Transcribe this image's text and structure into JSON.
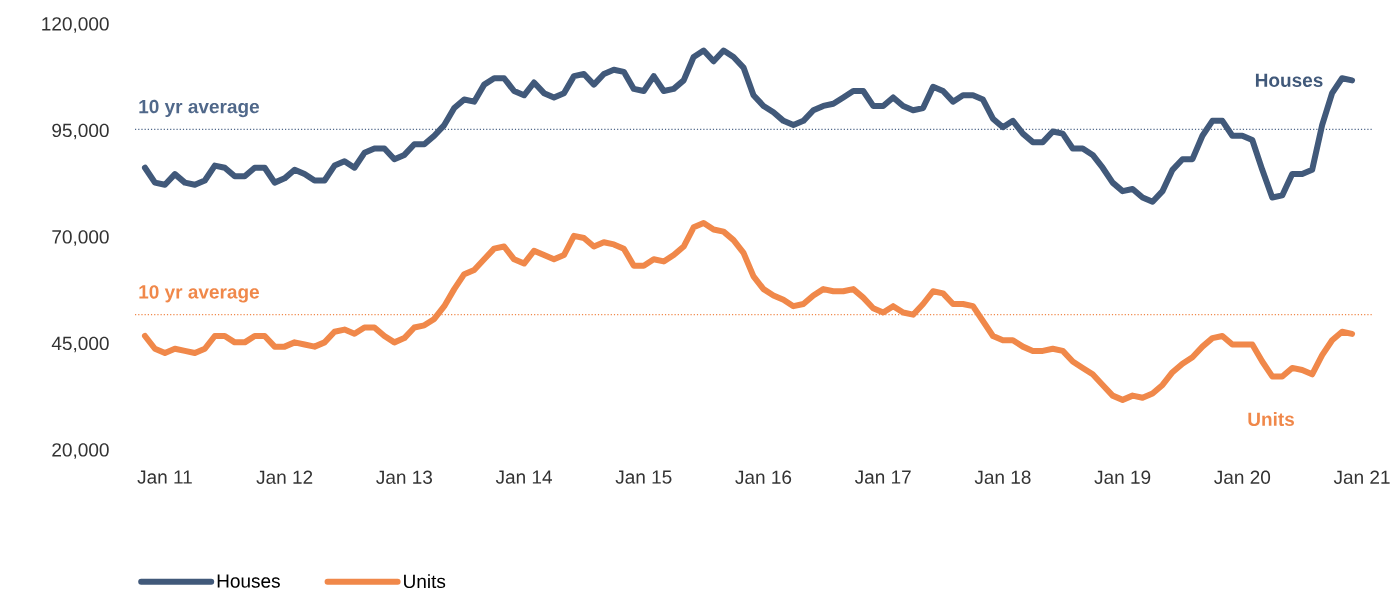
{
  "chart_data": {
    "type": "line",
    "x": [
      "2010-11",
      "2010-12",
      "2011-01",
      "2011-02",
      "2011-03",
      "2011-04",
      "2011-05",
      "2011-06",
      "2011-07",
      "2011-08",
      "2011-09",
      "2011-10",
      "2011-11",
      "2011-12",
      "2012-01",
      "2012-02",
      "2012-03",
      "2012-04",
      "2012-05",
      "2012-06",
      "2012-07",
      "2012-08",
      "2012-09",
      "2012-10",
      "2012-11",
      "2012-12",
      "2013-01",
      "2013-02",
      "2013-03",
      "2013-04",
      "2013-05",
      "2013-06",
      "2013-07",
      "2013-08",
      "2013-09",
      "2013-10",
      "2013-11",
      "2013-12",
      "2014-01",
      "2014-02",
      "2014-03",
      "2014-04",
      "2014-05",
      "2014-06",
      "2014-07",
      "2014-08",
      "2014-09",
      "2014-10",
      "2014-11",
      "2014-12",
      "2015-01",
      "2015-02",
      "2015-03",
      "2015-04",
      "2015-05",
      "2015-06",
      "2015-07",
      "2015-08",
      "2015-09",
      "2015-10",
      "2015-11",
      "2015-12",
      "2016-01",
      "2016-02",
      "2016-03",
      "2016-04",
      "2016-05",
      "2016-06",
      "2016-07",
      "2016-08",
      "2016-09",
      "2016-10",
      "2016-11",
      "2016-12",
      "2017-01",
      "2017-02",
      "2017-03",
      "2017-04",
      "2017-05",
      "2017-06",
      "2017-07",
      "2017-08",
      "2017-09",
      "2017-10",
      "2017-11",
      "2017-12",
      "2018-01",
      "2018-02",
      "2018-03",
      "2018-04",
      "2018-05",
      "2018-06",
      "2018-07",
      "2018-08",
      "2018-09",
      "2018-10",
      "2018-11",
      "2018-12",
      "2019-01",
      "2019-02",
      "2019-03",
      "2019-04",
      "2019-05",
      "2019-06",
      "2019-07",
      "2019-08",
      "2019-09",
      "2019-10",
      "2019-11",
      "2019-12",
      "2020-01",
      "2020-02",
      "2020-03",
      "2020-04",
      "2020-05",
      "2020-06",
      "2020-07",
      "2020-08",
      "2020-09",
      "2020-10",
      "2020-11",
      "2020-12"
    ],
    "series": [
      {
        "name": "Houses",
        "color": "#41597a",
        "values": [
          86500,
          83000,
          82500,
          85000,
          83000,
          82500,
          83500,
          87000,
          86500,
          84500,
          84500,
          86500,
          86500,
          83000,
          84000,
          86000,
          85000,
          83500,
          83500,
          87000,
          88000,
          86500,
          90000,
          91000,
          91000,
          88500,
          89500,
          92000,
          92000,
          94000,
          96500,
          100500,
          102500,
          102000,
          106000,
          107500,
          107500,
          104500,
          103500,
          106500,
          104000,
          103000,
          104000,
          108000,
          108500,
          106000,
          108500,
          109500,
          109000,
          105000,
          104500,
          108000,
          104500,
          105000,
          107000,
          112500,
          114000,
          111500,
          114000,
          112500,
          110000,
          103500,
          101000,
          99500,
          97500,
          96500,
          97500,
          100000,
          101000,
          101500,
          103000,
          104500,
          104500,
          101000,
          101000,
          103000,
          101000,
          100000,
          100500,
          105500,
          104500,
          102000,
          103500,
          103500,
          102500,
          98000,
          96000,
          97500,
          94500,
          92500,
          92500,
          95000,
          94500,
          91000,
          91000,
          89500,
          86500,
          83000,
          81000,
          81500,
          79500,
          78500,
          81000,
          86000,
          88500,
          88500,
          94000,
          97500,
          97500,
          94000,
          94000,
          93000,
          86000,
          79500,
          80000,
          85000,
          85000,
          86000,
          96500,
          104000,
          107500,
          107000
        ]
      },
      {
        "name": "Units",
        "color": "#f0884a",
        "values": [
          47000,
          44000,
          43000,
          44000,
          43500,
          43000,
          44000,
          47000,
          47000,
          45500,
          45500,
          47000,
          47000,
          44500,
          44500,
          45500,
          45000,
          44500,
          45500,
          48000,
          48500,
          47500,
          49000,
          49000,
          47000,
          45500,
          46500,
          49000,
          49500,
          51000,
          54000,
          58000,
          61500,
          62500,
          65000,
          67500,
          68000,
          65000,
          64000,
          67000,
          66000,
          65000,
          66000,
          70500,
          70000,
          68000,
          69000,
          68500,
          67500,
          63500,
          63500,
          65000,
          64500,
          66000,
          68000,
          72500,
          73500,
          72000,
          71500,
          69500,
          66500,
          61000,
          58000,
          56500,
          55500,
          54000,
          54500,
          56500,
          58000,
          57500,
          57500,
          58000,
          56000,
          53500,
          52500,
          54000,
          52500,
          52000,
          54500,
          57500,
          57000,
          54500,
          54500,
          54000,
          50500,
          47000,
          46000,
          46000,
          44500,
          43500,
          43500,
          44000,
          43500,
          41000,
          39500,
          38000,
          35500,
          33000,
          32000,
          33000,
          32500,
          33500,
          35500,
          38500,
          40500,
          42000,
          44500,
          46500,
          47000,
          45000,
          45000,
          45000,
          41000,
          37500,
          37500,
          39500,
          39000,
          38000,
          42500,
          46000,
          48000,
          47500
        ]
      }
    ],
    "xlim": [
      "2010-10",
      "2021-02"
    ],
    "xticks": [
      {
        "value": "2011-01",
        "label": "Jan 11"
      },
      {
        "value": "2012-01",
        "label": "Jan 12"
      },
      {
        "value": "2013-01",
        "label": "Jan 13"
      },
      {
        "value": "2014-01",
        "label": "Jan 14"
      },
      {
        "value": "2015-01",
        "label": "Jan 15"
      },
      {
        "value": "2016-01",
        "label": "Jan 16"
      },
      {
        "value": "2017-01",
        "label": "Jan 17"
      },
      {
        "value": "2018-01",
        "label": "Jan 18"
      },
      {
        "value": "2019-01",
        "label": "Jan 19"
      },
      {
        "value": "2020-01",
        "label": "Jan 20"
      },
      {
        "value": "2021-01",
        "label": "Jan 21"
      }
    ],
    "ylim": [
      20000,
      120000
    ],
    "yticks": [
      {
        "value": 20000,
        "label": "20,000"
      },
      {
        "value": 45000,
        "label": "45,000"
      },
      {
        "value": 70000,
        "label": "70,000"
      },
      {
        "value": 95000,
        "label": "95,000"
      },
      {
        "value": 120000,
        "label": "120,000"
      }
    ],
    "ref_lines": [
      {
        "axis": "y",
        "value": 95500,
        "label": "10 yr average",
        "color": "#50688a",
        "line_style": "dotted"
      },
      {
        "axis": "y",
        "value": 52000,
        "label": "10 yr average",
        "color": "#f0884a",
        "line_style": "dotted"
      }
    ],
    "legend": "bottom"
  }
}
